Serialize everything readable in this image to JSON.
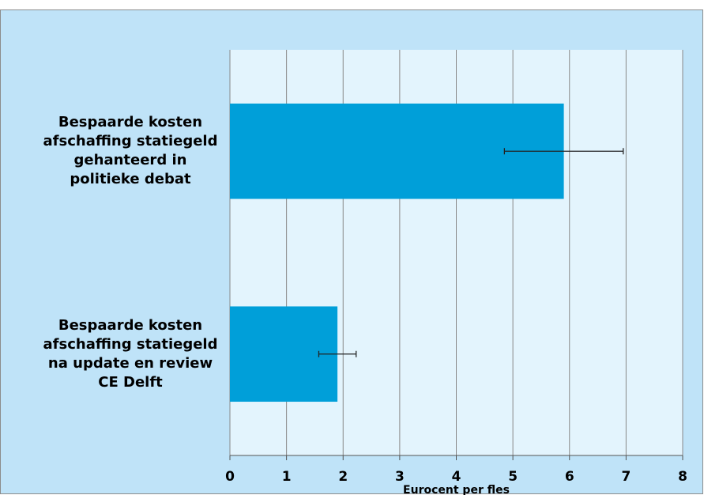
{
  "chart_data": {
    "type": "barh",
    "categories": [
      "Bespaarde kosten\nafschaffing statiegeld\ngehanteerd in\npolitieke debat",
      "Bespaarde kosten\nafschaffing statiegeld\nna update en review\nCE Delft"
    ],
    "values": [
      5.9,
      1.9
    ],
    "errors": [
      1.05,
      0.33
    ],
    "color": "#009fd9",
    "xlabel": "Eurocent per fles",
    "xlim": [
      0,
      8
    ],
    "xticks": [
      0,
      1,
      2,
      3,
      4,
      5,
      6,
      7,
      8
    ],
    "grid": true
  }
}
